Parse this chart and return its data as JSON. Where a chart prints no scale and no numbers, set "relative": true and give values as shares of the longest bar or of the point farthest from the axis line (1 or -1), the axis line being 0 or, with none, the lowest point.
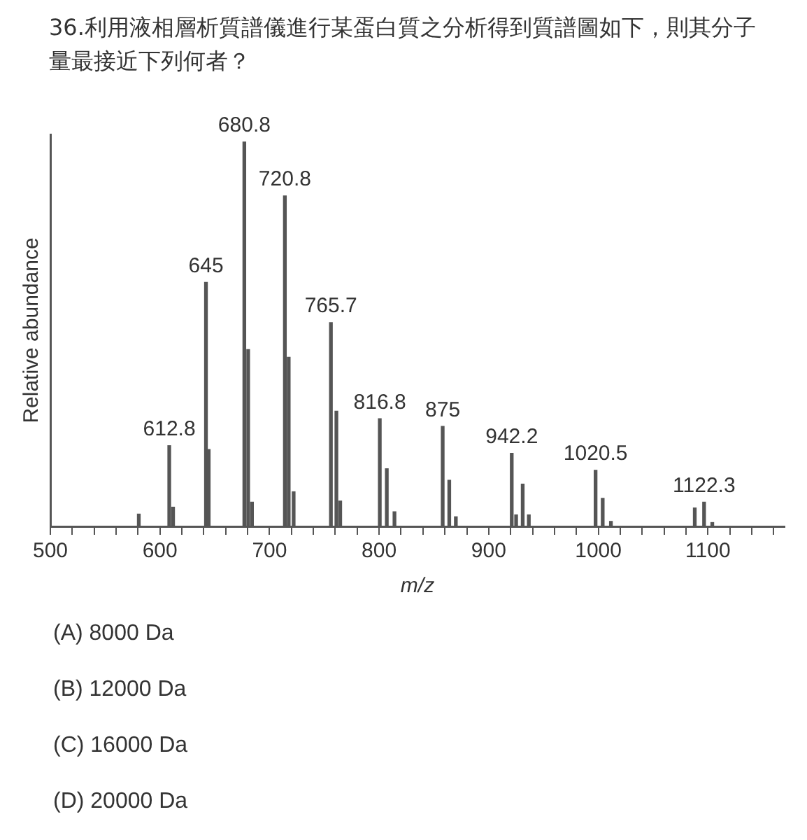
{
  "chart_data": {
    "type": "bar",
    "title": "36.利用液相層析質譜儀進行某蛋白質之分析得到質譜圖如下，則其分子量最接近下列何者？",
    "xlabel": "m/z",
    "ylabel": "Relative abundance",
    "relative": true,
    "color": "#555555",
    "x": [
      580.7,
      608.5,
      612,
      642,
      644.5,
      677,
      680.5,
      684,
      714,
      717.5,
      722,
      756,
      761,
      764.5,
      800.6,
      807,
      814,
      858,
      864,
      870,
      921,
      925,
      931,
      936.6,
      997.5,
      1004,
      1011.5,
      1088,
      1096.5,
      1104
    ],
    "values": [
      0.032,
      0.21,
      0.05,
      0.635,
      0.2,
      1,
      0.46,
      0.063,
      0.86,
      0.44,
      0.09,
      0.53,
      0.3,
      0.066,
      0.28,
      0.15,
      0.038,
      0.26,
      0.12,
      0.025,
      0.19,
      0.03,
      0.11,
      0.03,
      0.146,
      0.073,
      0.013,
      0.048,
      0.063,
      0.01
    ],
    "xlim": [
      500,
      1170
    ],
    "xticks": [
      500,
      {
        "value": 520,
        "label": null
      },
      {
        "value": 540,
        "label": null
      },
      {
        "value": 560,
        "label": null
      },
      {
        "value": 580,
        "label": null
      },
      600,
      {
        "value": 620,
        "label": null
      },
      {
        "value": 640,
        "label": null
      },
      {
        "value": 660,
        "label": null
      },
      {
        "value": 680,
        "label": null
      },
      700,
      {
        "value": 720,
        "label": null
      },
      {
        "value": 740,
        "label": null
      },
      {
        "value": 760,
        "label": null
      },
      {
        "value": 780,
        "label": null
      },
      800,
      {
        "value": 820,
        "label": null
      },
      {
        "value": 840,
        "label": null
      },
      {
        "value": 860,
        "label": null
      },
      {
        "value": 880,
        "label": null
      },
      900,
      {
        "value": 920,
        "label": null
      },
      {
        "value": 940,
        "label": null
      },
      {
        "value": 960,
        "label": null
      },
      {
        "value": 980,
        "label": null
      },
      1000,
      {
        "value": 1020,
        "label": null
      },
      {
        "value": 1040,
        "label": null
      },
      {
        "value": 1060,
        "label": null
      },
      {
        "value": 1080,
        "label": null
      },
      1100,
      {
        "value": 1120,
        "label": null
      },
      {
        "value": 1140,
        "label": null
      },
      {
        "value": 1160,
        "label": null
      }
    ],
    "grid": false,
    "legend": false,
    "annotations": [
      {
        "text": "612.8",
        "x": 608.5,
        "y": 0.21
      },
      {
        "text": "645",
        "x": 642,
        "y": 0.635
      },
      {
        "text": "680.8",
        "x": 677,
        "y": 1
      },
      {
        "text": "720.8",
        "x": 714,
        "y": 0.86
      },
      {
        "text": "765.7",
        "x": 756,
        "y": 0.53
      },
      {
        "text": "816.8",
        "x": 800.6,
        "y": 0.28
      },
      {
        "text": "875",
        "x": 858,
        "y": 0.26
      },
      {
        "text": "942.2",
        "x": 921,
        "y": 0.19
      },
      {
        "text": "1020.5",
        "x": 997.5,
        "y": 0.146
      },
      {
        "text": "1122.3",
        "x": 1096.5,
        "y": 0.063
      },
      "(A) 8000 Da",
      "(B) 12000 Da",
      "(C) 16000 Da",
      "(D) 20000 Da"
    ]
  }
}
